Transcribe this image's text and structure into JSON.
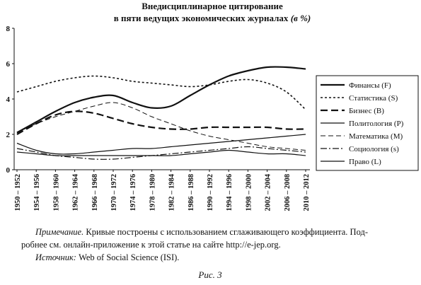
{
  "chart_data": {
    "type": "line",
    "title": [
      "Внедисциплинарное цитирование",
      "в пяти ведущих экономических журналах"
    ],
    "title_unit": "(в %)",
    "categories": [
      "1950 – 1952",
      "1954 – 1956",
      "1958 – 1960",
      "1962 – 1964",
      "1966 – 1968",
      "1970 – 1972",
      "1974 – 1976",
      "1978 – 1980",
      "1982 – 1984",
      "1986 – 1988",
      "1990 – 1992",
      "1994 – 1996",
      "1998 – 2000",
      "2002 – 2004",
      "2006 – 2008",
      "2010 – 2012"
    ],
    "ylim": [
      0,
      8
    ],
    "yticks": [
      0,
      2,
      4,
      6,
      8
    ],
    "legend": "right",
    "series": [
      {
        "name": "Финансы (F)",
        "color": "#111",
        "width": 2.2,
        "dash": "none",
        "values": [
          2.1,
          2.7,
          3.3,
          3.8,
          4.1,
          4.2,
          3.8,
          3.5,
          3.6,
          4.2,
          4.8,
          5.3,
          5.6,
          5.8,
          5.8,
          5.7
        ]
      },
      {
        "name": "Статистика (S)",
        "color": "#111",
        "width": 1.6,
        "dash": "3 3",
        "values": [
          4.4,
          4.7,
          5.0,
          5.2,
          5.3,
          5.2,
          5.0,
          4.9,
          4.8,
          4.7,
          4.8,
          5.0,
          5.1,
          4.9,
          4.4,
          3.4
        ]
      },
      {
        "name": "Бизнес (B)",
        "color": "#111",
        "width": 2.2,
        "dash": "10 5",
        "values": [
          2.0,
          2.6,
          3.1,
          3.3,
          3.2,
          2.9,
          2.6,
          2.4,
          2.3,
          2.3,
          2.4,
          2.4,
          2.4,
          2.4,
          2.3,
          2.3
        ]
      },
      {
        "name": "Политология (P)",
        "color": "#111",
        "width": 1.2,
        "dash": "none",
        "values": [
          1.5,
          1.1,
          0.9,
          0.9,
          1.0,
          1.1,
          1.2,
          1.2,
          1.3,
          1.4,
          1.5,
          1.6,
          1.7,
          1.8,
          1.9,
          2.0
        ]
      },
      {
        "name": "Математика (M)",
        "color": "#111",
        "width": 1,
        "dash": "7 4",
        "values": [
          2.1,
          2.6,
          3.0,
          3.3,
          3.6,
          3.8,
          3.5,
          3.0,
          2.6,
          2.2,
          1.9,
          1.7,
          1.5,
          1.3,
          1.2,
          1.1
        ]
      },
      {
        "name": "Социология (s)",
        "color": "#111",
        "width": 1.2,
        "dash": "9 3 2 3",
        "values": [
          1.2,
          1.0,
          0.8,
          0.7,
          0.6,
          0.6,
          0.7,
          0.8,
          0.9,
          1.0,
          1.1,
          1.2,
          1.3,
          1.2,
          1.1,
          1.0
        ]
      },
      {
        "name": "Право (L)",
        "color": "#111",
        "width": 1.2,
        "dash": "none",
        "values": [
          1.0,
          0.9,
          0.8,
          0.8,
          0.8,
          0.8,
          0.8,
          0.8,
          0.8,
          0.9,
          1.0,
          1.1,
          1.0,
          0.9,
          0.9,
          0.8
        ]
      }
    ]
  },
  "caption": {
    "note_label": "Примечание.",
    "note_lines": [
      "Кривые построены с использованием сглаживающего коэффициента. Под-",
      "робнее см. онлайн-приложение к этой статье на сайте http://e-jep.org."
    ],
    "source_label": "Источник:",
    "source_text": "Web of Social Science (ISI).",
    "figure": "Рис. 3"
  }
}
